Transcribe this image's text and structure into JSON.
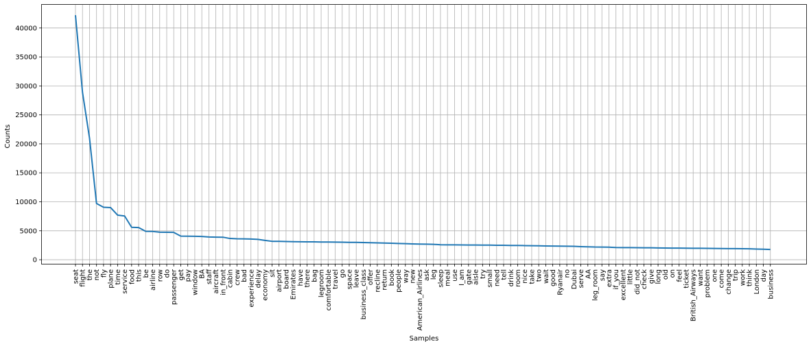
{
  "chart_data": {
    "type": "line",
    "xlabel": "Samples",
    "ylabel": "Counts",
    "ylim": [
      -700,
      44000
    ],
    "yticks": [
      0,
      5000,
      10000,
      15000,
      20000,
      25000,
      30000,
      35000,
      40000
    ],
    "grid": true,
    "line_color": "#1f77b4",
    "grid_color": "#b0b0b0",
    "categories": [
      "seat",
      "flight",
      "the",
      "not",
      "fly",
      "plane",
      "time",
      "service",
      "food",
      "this",
      "be",
      "airline",
      "row",
      "do",
      "passenger",
      "get",
      "pay",
      "window",
      "BA",
      "staff",
      "aircraft",
      "in_front",
      "cabin",
      "crew",
      "bad",
      "experience",
      "delay",
      "economy",
      "sit",
      "airport",
      "board",
      "Emirates",
      "have",
      "there",
      "bag",
      "legroom",
      "comfortable",
      "travel",
      "go",
      "space",
      "leave",
      "business_class",
      "offer",
      "recline",
      "return",
      "book",
      "people",
      "way",
      "new",
      "American_Airlines",
      "ask",
      "leg",
      "sleep",
      "meal",
      "use",
      "I_am",
      "gate",
      "aisle",
      "try",
      "small",
      "need",
      "tell",
      "drink",
      "room",
      "nice",
      "take",
      "two",
      "wait",
      "good",
      "Ryanair",
      "no",
      "Dubai",
      "serve",
      "AA",
      "leg_room",
      "say",
      "extra",
      "if_you",
      "excellent",
      "little",
      "did_not",
      "check",
      "give",
      "long",
      "old",
      "on",
      "feel",
      "ticket",
      "British_Airways",
      "want",
      "problem",
      "one",
      "come",
      "change",
      "trip",
      "work",
      "think",
      "London",
      "day",
      "business"
    ],
    "values": [
      42200,
      28900,
      21000,
      9700,
      9050,
      9000,
      7700,
      7550,
      5600,
      5550,
      4900,
      4880,
      4760,
      4740,
      4720,
      4080,
      4060,
      4040,
      4010,
      3930,
      3900,
      3890,
      3670,
      3620,
      3600,
      3570,
      3510,
      3340,
      3180,
      3170,
      3140,
      3120,
      3100,
      3090,
      3080,
      3060,
      3050,
      3040,
      3020,
      3000,
      2990,
      2970,
      2940,
      2910,
      2870,
      2840,
      2800,
      2780,
      2730,
      2700,
      2680,
      2660,
      2580,
      2570,
      2560,
      2550,
      2540,
      2540,
      2530,
      2520,
      2500,
      2490,
      2470,
      2460,
      2440,
      2420,
      2400,
      2380,
      2360,
      2350,
      2330,
      2310,
      2260,
      2230,
      2190,
      2180,
      2160,
      2110,
      2100,
      2090,
      2080,
      2070,
      2060,
      2040,
      2020,
      2010,
      2000,
      1990,
      1980,
      1970,
      1960,
      1950,
      1930,
      1920,
      1910,
      1900,
      1880,
      1850,
      1820,
      1770
    ]
  }
}
